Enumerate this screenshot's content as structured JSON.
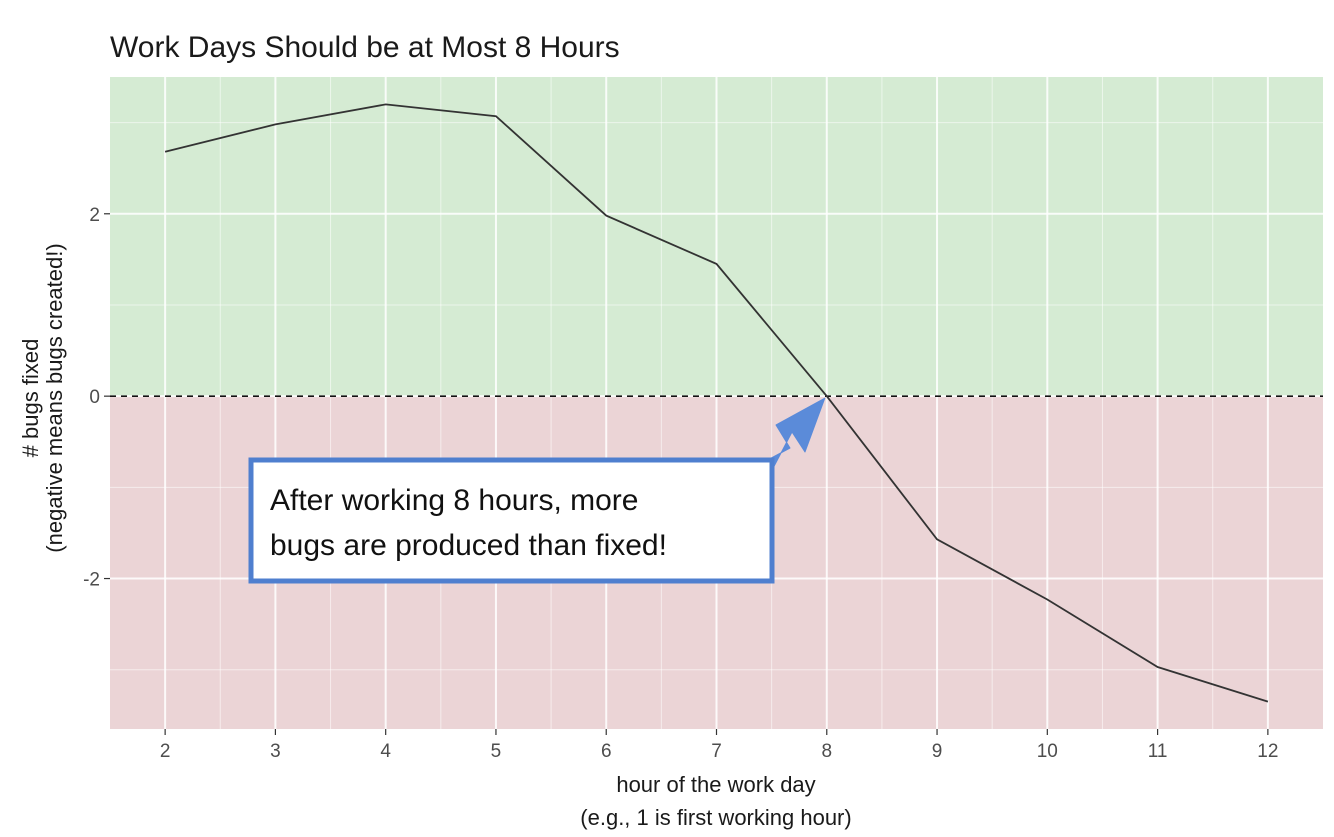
{
  "chart_data": {
    "type": "line",
    "title": "Work Days Should be at Most 8 Hours",
    "xlabel": [
      "hour of the work day",
      "(e.g., 1 is first working hour)"
    ],
    "ylabel": [
      "# bugs fixed",
      "(negative means bugs created!)"
    ],
    "x": [
      2,
      3,
      4,
      5,
      6,
      7,
      8,
      9,
      10,
      11,
      12
    ],
    "series": [
      {
        "values": [
          2.68,
          2.98,
          3.2,
          3.07,
          1.98,
          1.45,
          0.0,
          -1.57,
          -2.23,
          -2.97,
          -3.35
        ]
      }
    ],
    "xlim": [
      1.5,
      12.5
    ],
    "ylim": [
      -3.65,
      3.5
    ],
    "xticks": [
      2,
      3,
      4,
      5,
      6,
      7,
      8,
      9,
      10,
      11,
      12
    ],
    "yticks": [
      -2,
      0,
      2
    ],
    "xtick_labels": [
      "2",
      "3",
      "4",
      "5",
      "6",
      "7",
      "8",
      "9",
      "10",
      "11",
      "12"
    ],
    "ytick_labels": [
      "-2",
      "0",
      "2"
    ],
    "reference_line": {
      "y": 0,
      "style": "dashed"
    },
    "regions": [
      {
        "name": "positive",
        "from": 0,
        "to": 3.5,
        "color": "#d5ebd3"
      },
      {
        "name": "negative",
        "from": -3.65,
        "to": 0,
        "color": "#ebd4d6"
      }
    ],
    "grid": true,
    "line_color": "#333333",
    "annotation": {
      "lines": [
        "After working 8 hours, more",
        "bugs are produced than fixed!"
      ],
      "arrow_to": {
        "x": 8,
        "y": 0
      },
      "border_color": "#4f7fcf",
      "arrow_color": "#5b8bd9"
    }
  }
}
